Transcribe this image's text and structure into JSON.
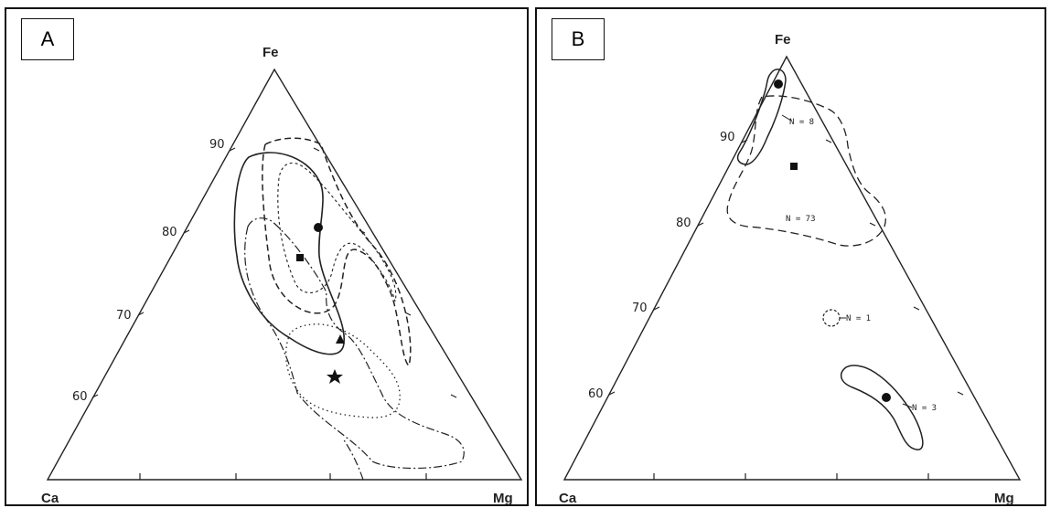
{
  "panels": [
    {
      "label": "A",
      "vertices": {
        "top": "Fe",
        "left": "Ca",
        "right": "Mg"
      },
      "ticks": [
        "90",
        "80",
        "70",
        "60"
      ],
      "annotations": []
    },
    {
      "label": "B",
      "vertices": {
        "top": "Fe",
        "left": "Ca",
        "right": "Mg"
      },
      "ticks": [
        "90",
        "80",
        "70",
        "60"
      ],
      "annotations": [
        "N = 8",
        "N = 73",
        "N = 1",
        "N = 3"
      ]
    }
  ]
}
